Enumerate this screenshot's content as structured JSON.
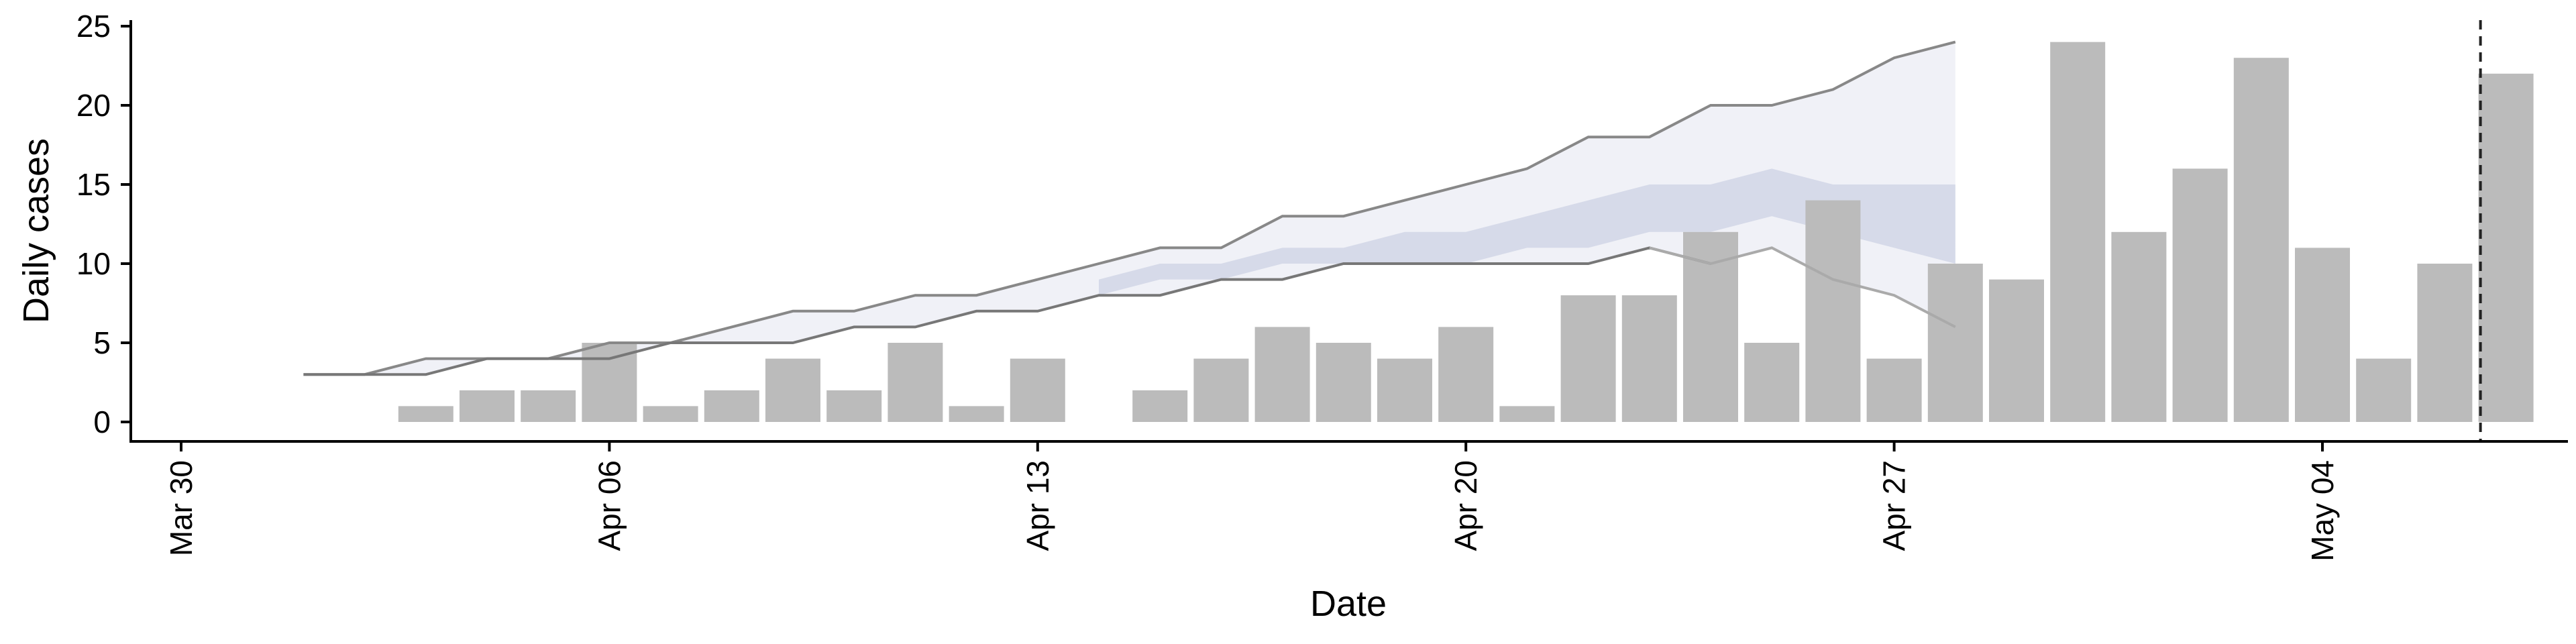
{
  "chart_data": {
    "type": "bar",
    "xlabel": "Date",
    "ylabel": "Daily cases",
    "ylim": [
      0,
      25
    ],
    "xlim": [
      "2020-03-30",
      "2020-05-10"
    ],
    "y_ticks": [
      0,
      5,
      10,
      15,
      20,
      25
    ],
    "x_ticks": [
      {
        "date": "2020-03-30",
        "label": "Mar 30"
      },
      {
        "date": "2020-04-06",
        "label": "Apr 06"
      },
      {
        "date": "2020-04-13",
        "label": "Apr 13"
      },
      {
        "date": "2020-04-20",
        "label": "Apr 20"
      },
      {
        "date": "2020-04-27",
        "label": "Apr 27"
      },
      {
        "date": "2020-05-04",
        "label": "May 04"
      }
    ],
    "grid": false,
    "bars": {
      "color": "#bbbbbb",
      "points": [
        {
          "date": "2020-04-03",
          "value": 1
        },
        {
          "date": "2020-04-04",
          "value": 2
        },
        {
          "date": "2020-04-05",
          "value": 2
        },
        {
          "date": "2020-04-06",
          "value": 5
        },
        {
          "date": "2020-04-07",
          "value": 1
        },
        {
          "date": "2020-04-08",
          "value": 2
        },
        {
          "date": "2020-04-09",
          "value": 4
        },
        {
          "date": "2020-04-10",
          "value": 2
        },
        {
          "date": "2020-04-11",
          "value": 5
        },
        {
          "date": "2020-04-12",
          "value": 1
        },
        {
          "date": "2020-04-13",
          "value": 4
        },
        {
          "date": "2020-04-14",
          "value": 0
        },
        {
          "date": "2020-04-15",
          "value": 2
        },
        {
          "date": "2020-04-16",
          "value": 4
        },
        {
          "date": "2020-04-17",
          "value": 6
        },
        {
          "date": "2020-04-18",
          "value": 5
        },
        {
          "date": "2020-04-19",
          "value": 4
        },
        {
          "date": "2020-04-20",
          "value": 6
        },
        {
          "date": "2020-04-21",
          "value": 1
        },
        {
          "date": "2020-04-22",
          "value": 8
        },
        {
          "date": "2020-04-23",
          "value": 8
        },
        {
          "date": "2020-04-24",
          "value": 12
        },
        {
          "date": "2020-04-25",
          "value": 5
        },
        {
          "date": "2020-04-26",
          "value": 14
        },
        {
          "date": "2020-04-27",
          "value": 4
        },
        {
          "date": "2020-04-28",
          "value": 10
        },
        {
          "date": "2020-04-29",
          "value": 9
        },
        {
          "date": "2020-04-30",
          "value": 24
        },
        {
          "date": "2020-05-01",
          "value": 12
        },
        {
          "date": "2020-05-02",
          "value": 16
        },
        {
          "date": "2020-05-03",
          "value": 23
        },
        {
          "date": "2020-05-04",
          "value": 11
        },
        {
          "date": "2020-05-05",
          "value": 4
        },
        {
          "date": "2020-05-06",
          "value": 10
        },
        {
          "date": "2020-05-07",
          "value": 22
        }
      ]
    },
    "bands": [
      {
        "color": "#e4e6f0",
        "dates": [
          "2020-04-01",
          "2020-04-02",
          "2020-04-03",
          "2020-04-04",
          "2020-04-05",
          "2020-04-06",
          "2020-04-07",
          "2020-04-08",
          "2020-04-09",
          "2020-04-10",
          "2020-04-11",
          "2020-04-12",
          "2020-04-13",
          "2020-04-14",
          "2020-04-15",
          "2020-04-16",
          "2020-04-17",
          "2020-04-18",
          "2020-04-19",
          "2020-04-20",
          "2020-04-21",
          "2020-04-22",
          "2020-04-23",
          "2020-04-24",
          "2020-04-25",
          "2020-04-26",
          "2020-04-27",
          "2020-04-28"
        ],
        "lower": [
          3,
          3,
          3,
          4,
          4,
          4,
          5,
          5,
          5,
          6,
          6,
          7,
          7,
          8,
          8,
          9,
          9,
          10,
          10,
          10,
          10,
          10,
          11,
          10,
          11,
          9,
          8,
          6
        ],
        "upper": [
          3,
          3,
          4,
          4,
          4,
          5,
          5,
          6,
          7,
          7,
          8,
          8,
          9,
          10,
          11,
          11,
          13,
          13,
          14,
          15,
          16,
          18,
          18,
          20,
          20,
          21,
          23,
          24
        ]
      },
      {
        "color": "#c5cbe0",
        "dates": [
          "2020-04-14",
          "2020-04-15",
          "2020-04-16",
          "2020-04-17",
          "2020-04-18",
          "2020-04-19",
          "2020-04-20",
          "2020-04-21",
          "2020-04-22",
          "2020-04-23",
          "2020-04-24",
          "2020-04-25",
          "2020-04-26",
          "2020-04-27",
          "2020-04-28"
        ],
        "lower": [
          8,
          9,
          9,
          10,
          10,
          10,
          10,
          11,
          11,
          12,
          12,
          13,
          12,
          11,
          10
        ],
        "upper": [
          9,
          10,
          10,
          11,
          11,
          12,
          12,
          13,
          14,
          15,
          15,
          16,
          15,
          15,
          15
        ]
      }
    ],
    "lines": [
      {
        "color": "#888888",
        "dates": [
          "2020-04-01",
          "2020-04-02",
          "2020-04-03",
          "2020-04-04",
          "2020-04-05",
          "2020-04-06",
          "2020-04-07",
          "2020-04-08",
          "2020-04-09",
          "2020-04-10",
          "2020-04-11",
          "2020-04-12",
          "2020-04-13",
          "2020-04-14",
          "2020-04-15",
          "2020-04-16",
          "2020-04-17",
          "2020-04-18",
          "2020-04-19",
          "2020-04-20",
          "2020-04-21",
          "2020-04-22",
          "2020-04-23",
          "2020-04-24",
          "2020-04-25",
          "2020-04-26",
          "2020-04-27",
          "2020-04-28"
        ],
        "values": [
          3,
          3,
          4,
          4,
          4,
          5,
          5,
          6,
          7,
          7,
          8,
          8,
          9,
          10,
          11,
          11,
          13,
          13,
          14,
          15,
          16,
          18,
          18,
          20,
          20,
          21,
          23,
          24
        ]
      },
      {
        "color": "#777777",
        "dates": [
          "2020-04-01",
          "2020-04-02",
          "2020-04-03",
          "2020-04-04",
          "2020-04-05",
          "2020-04-06",
          "2020-04-07",
          "2020-04-08",
          "2020-04-09",
          "2020-04-10",
          "2020-04-11",
          "2020-04-12",
          "2020-04-13",
          "2020-04-14",
          "2020-04-15",
          "2020-04-16",
          "2020-04-17",
          "2020-04-18",
          "2020-04-19",
          "2020-04-20",
          "2020-04-21",
          "2020-04-22",
          "2020-04-23",
          "2020-04-24"
        ],
        "values": [
          3,
          3,
          3,
          4,
          4,
          4,
          5,
          5,
          5,
          6,
          6,
          7,
          7,
          8,
          8,
          9,
          9,
          10,
          10,
          10,
          10,
          10,
          11,
          10
        ]
      },
      {
        "color": "#aaaaaa",
        "dates": [
          "2020-04-23",
          "2020-04-24",
          "2020-04-25",
          "2020-04-26",
          "2020-04-27",
          "2020-04-28"
        ],
        "values": [
          11,
          10,
          11,
          9,
          8,
          6
        ]
      }
    ],
    "vline": {
      "date": "2020-05-07",
      "style": "dashed",
      "color": "#222222"
    }
  }
}
